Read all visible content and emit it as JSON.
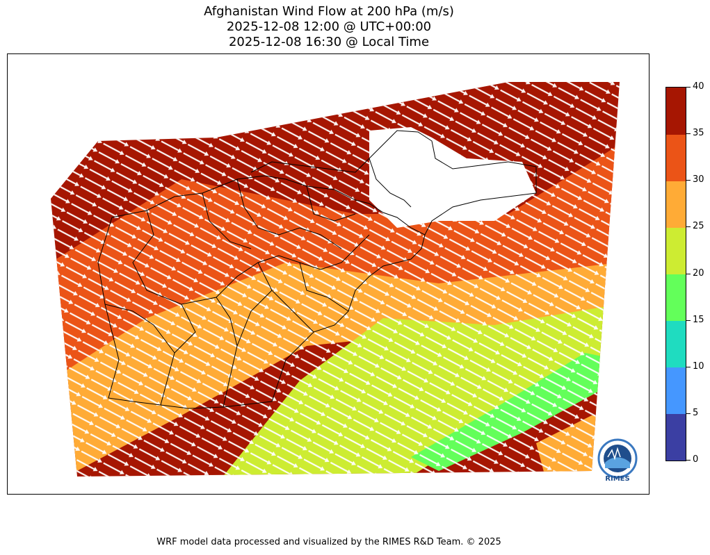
{
  "title": {
    "line1": "Afghanistan Wind Flow at 200 hPa (m/s)",
    "line2": "2025-12-08 12:00 @ UTC+00:00",
    "line3": "2025-12-08 16:30 @ Local Time"
  },
  "colorbar": {
    "levels": [
      {
        "from": 0,
        "to": 5,
        "color": "#3b3fa3"
      },
      {
        "from": 5,
        "to": 10,
        "color": "#4597ff"
      },
      {
        "from": 10,
        "to": 15,
        "color": "#1fdcc0"
      },
      {
        "from": 15,
        "to": 20,
        "color": "#63ff5a"
      },
      {
        "from": 20,
        "to": 25,
        "color": "#cdec32"
      },
      {
        "from": 25,
        "to": 30,
        "color": "#ffab36"
      },
      {
        "from": 30,
        "to": 35,
        "color": "#eb5417"
      },
      {
        "from": 35,
        "to": 40,
        "color": "#a61602"
      }
    ],
    "tick_labels": [
      "0",
      "5",
      "10",
      "15",
      "20",
      "25",
      "30",
      "35",
      "40"
    ]
  },
  "wind": {
    "direction": "north-west to south-east",
    "vector_color": "#ffffff"
  },
  "logo": {
    "text": "RIMES"
  },
  "footer": "WRF model data processed and visualized by the RIMES R&D Team. © 2025"
}
